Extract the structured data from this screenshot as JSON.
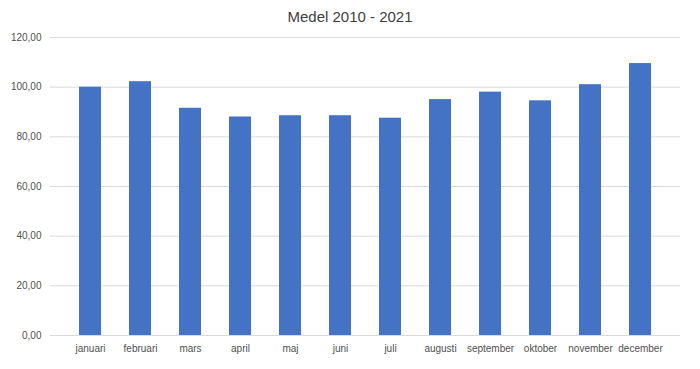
{
  "chart_data": {
    "type": "bar",
    "title": "Medel 2010 - 2021",
    "categories": [
      "januari",
      "februari",
      "mars",
      "april",
      "maj",
      "juni",
      "juli",
      "augusti",
      "september",
      "oktober",
      "november",
      "december"
    ],
    "values": [
      100.0,
      102.2,
      91.5,
      88.0,
      88.5,
      88.5,
      87.5,
      95.0,
      98.0,
      94.5,
      101.0,
      109.5
    ],
    "color": "#4472C4",
    "ylim": [
      0,
      120
    ],
    "yticks": [
      {
        "value": 0,
        "label": "0,00"
      },
      {
        "value": 20,
        "label": "20,00"
      },
      {
        "value": 40,
        "label": "40,00"
      },
      {
        "value": 60,
        "label": "60,00"
      },
      {
        "value": 80,
        "label": "80,00"
      },
      {
        "value": 100,
        "label": "100,00"
      },
      {
        "value": 120,
        "label": "120,00"
      }
    ],
    "grid": true
  }
}
